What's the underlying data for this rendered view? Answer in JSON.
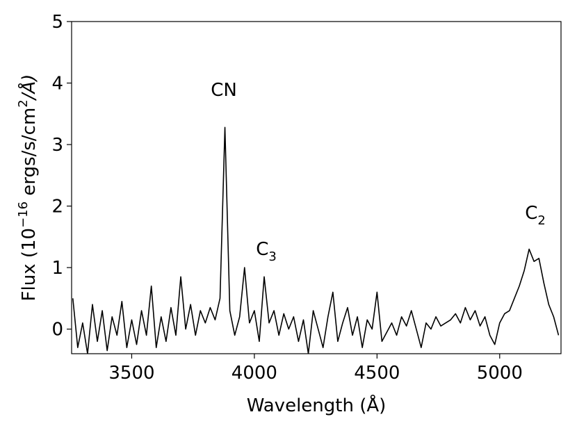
{
  "chart_data": {
    "type": "line",
    "xlabel": "Wavelength (Å)",
    "ylabel": [
      "Flux (10",
      "−16",
      " ergs/s/cm",
      "2",
      "/Å)"
    ],
    "annotations": [
      {
        "text": "CN"
      },
      {
        "text": "C",
        "subscript": "3"
      },
      {
        "text": "C",
        "subscript": "2"
      }
    ],
    "color": "#000000",
    "x": [
      3260,
      3280,
      3300,
      3320,
      3340,
      3360,
      3380,
      3400,
      3420,
      3440,
      3460,
      3480,
      3500,
      3520,
      3540,
      3560,
      3580,
      3600,
      3620,
      3640,
      3660,
      3680,
      3700,
      3720,
      3740,
      3760,
      3780,
      3800,
      3820,
      3840,
      3860,
      3880,
      3900,
      3920,
      3940,
      3960,
      3980,
      4000,
      4020,
      4040,
      4060,
      4080,
      4100,
      4120,
      4140,
      4160,
      4180,
      4200,
      4220,
      4240,
      4260,
      4280,
      4300,
      4320,
      4340,
      4360,
      4380,
      4400,
      4420,
      4440,
      4460,
      4480,
      4500,
      4520,
      4540,
      4560,
      4580,
      4600,
      4620,
      4640,
      4660,
      4680,
      4700,
      4720,
      4740,
      4760,
      4780,
      4800,
      4820,
      4840,
      4860,
      4880,
      4900,
      4920,
      4940,
      4960,
      4980,
      5000,
      5020,
      5040,
      5060,
      5080,
      5100,
      5120,
      5140,
      5160,
      5180,
      5200,
      5220,
      5240
    ],
    "values": [
      0.5,
      -0.3,
      0.1,
      -0.4,
      0.4,
      -0.2,
      0.3,
      -0.35,
      0.2,
      -0.1,
      0.45,
      -0.3,
      0.15,
      -0.25,
      0.3,
      -0.1,
      0.7,
      -0.3,
      0.2,
      -0.2,
      0.35,
      -0.1,
      0.85,
      0.0,
      0.4,
      -0.1,
      0.3,
      0.1,
      0.35,
      0.15,
      0.5,
      3.28,
      0.3,
      -0.1,
      0.2,
      1.0,
      0.1,
      0.3,
      -0.2,
      0.85,
      0.1,
      0.3,
      -0.1,
      0.25,
      0.0,
      0.2,
      -0.2,
      0.15,
      -0.4,
      0.3,
      0.0,
      -0.3,
      0.2,
      0.6,
      -0.2,
      0.1,
      0.35,
      -0.1,
      0.2,
      -0.3,
      0.15,
      0.0,
      0.6,
      -0.2,
      -0.05,
      0.1,
      -0.1,
      0.2,
      0.05,
      0.3,
      0.0,
      -0.3,
      0.1,
      0.0,
      0.2,
      0.05,
      0.1,
      0.15,
      0.25,
      0.1,
      0.35,
      0.15,
      0.3,
      0.05,
      0.2,
      -0.1,
      -0.25,
      0.1,
      0.25,
      0.3,
      0.5,
      0.7,
      0.95,
      1.3,
      1.1,
      1.15,
      0.75,
      0.4,
      0.2,
      -0.1
    ],
    "xlim": [
      3255,
      5250
    ],
    "ylim": [
      -0.4,
      5
    ],
    "xticks": [
      3500,
      4000,
      4500,
      5000
    ],
    "yticks": [
      0,
      1,
      2,
      3,
      4,
      5
    ]
  }
}
